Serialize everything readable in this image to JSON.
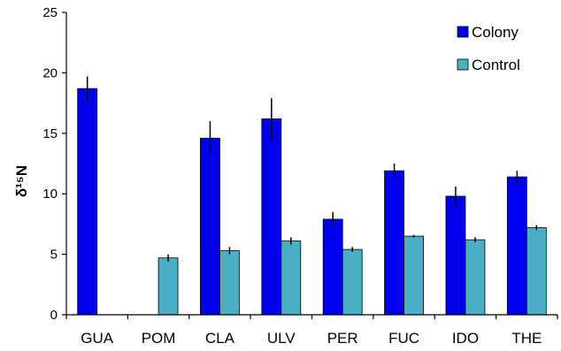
{
  "chart_data": {
    "type": "bar",
    "title": "",
    "xlabel": "",
    "ylabel": "δ¹⁵N",
    "ylim": [
      0,
      25
    ],
    "yticks": [
      0,
      5,
      10,
      15,
      20,
      25
    ],
    "grid": false,
    "legend_position": "top-right",
    "categories": [
      "GUA",
      "POM",
      "CLA",
      "ULV",
      "PER",
      "FUC",
      "IDO",
      "THE"
    ],
    "series": [
      {
        "name": "Colony",
        "color": "#0000ee",
        "values": [
          18.7,
          null,
          14.6,
          16.2,
          7.9,
          11.9,
          9.8,
          11.4
        ],
        "errors": [
          1.0,
          null,
          1.4,
          1.7,
          0.6,
          0.6,
          0.8,
          0.5
        ]
      },
      {
        "name": "Control",
        "color": "#4aaec4",
        "values": [
          null,
          4.7,
          5.3,
          6.1,
          5.4,
          6.5,
          6.2,
          7.2
        ],
        "errors": [
          null,
          0.3,
          0.3,
          0.3,
          0.2,
          0.1,
          0.2,
          0.2
        ]
      }
    ]
  }
}
